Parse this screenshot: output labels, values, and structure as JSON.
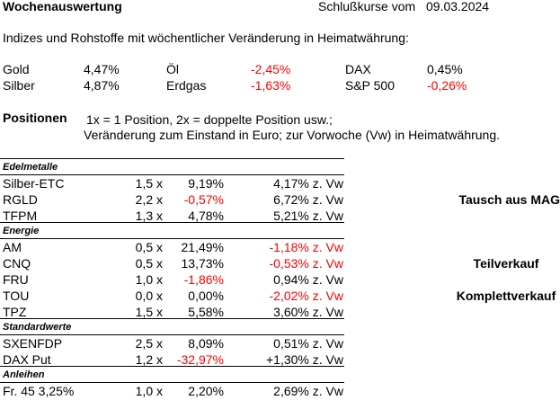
{
  "header": {
    "title": "Wochenauswertung",
    "date_label": "Schlußkurse vom",
    "date": "09.03.2024"
  },
  "intro": "Indizes und Rohstoffe mit wöchentlicher Veränderung in Heimatwährung:",
  "indices": [
    [
      {
        "name": "Gold",
        "value": "4,47%",
        "neg": false
      },
      {
        "name": "Öl",
        "value": "-2,45%",
        "neg": true
      },
      {
        "name": "DAX",
        "value": "0,45%",
        "neg": false
      }
    ],
    [
      {
        "name": "Silber",
        "value": "4,87%",
        "neg": false
      },
      {
        "name": "Erdgas",
        "value": "-1,63%",
        "neg": true
      },
      {
        "name": "S&P 500",
        "value": "-0,26%",
        "neg": true
      }
    ]
  ],
  "positions": {
    "title": "Positionen",
    "note1": "1x = 1 Position, 2x = doppelte Position usw.;",
    "note2": "Veränderung zum Einstand in Euro; zur Vorwoche (Vw) in Heimatwährung."
  },
  "colors": {
    "negative": "#ff0000"
  },
  "sections": [
    {
      "name": "Edelmetalle",
      "rows": [
        {
          "name": "Silber-ETC",
          "mult": "1,5 x",
          "pct": "9,19%",
          "pct_neg": false,
          "vw": "4,17% z. Vw",
          "vw_neg": false,
          "note": ""
        },
        {
          "name": "RGLD",
          "mult": "2,2 x",
          "pct": "-0,57%",
          "pct_neg": true,
          "vw": "6,72% z. Vw",
          "vw_neg": false,
          "note": "Tausch aus MAG"
        },
        {
          "name": "TFPM",
          "mult": "1,3 x",
          "pct": "4,78%",
          "pct_neg": false,
          "vw": "5,21% z. Vw",
          "vw_neg": false,
          "note": ""
        }
      ]
    },
    {
      "name": "Energie",
      "rows": [
        {
          "name": "AM",
          "mult": "0,5 x",
          "pct": "21,49%",
          "pct_neg": false,
          "vw": "-1,18% z. Vw",
          "vw_neg": true,
          "note": ""
        },
        {
          "name": "CNQ",
          "mult": "0,5 x",
          "pct": "13,73%",
          "pct_neg": false,
          "vw": "-0,53% z. Vw",
          "vw_neg": true,
          "note": "Teilverkauf"
        },
        {
          "name": "FRU",
          "mult": "1,0 x",
          "pct": "-1,86%",
          "pct_neg": true,
          "vw": "0,94% z. Vw",
          "vw_neg": false,
          "note": ""
        },
        {
          "name": "TOU",
          "mult": "0,0 x",
          "pct": "0,00%",
          "pct_neg": false,
          "vw": "-2,02% z. Vw",
          "vw_neg": true,
          "note": "Komplettverkauf"
        },
        {
          "name": "TPZ",
          "mult": "1,5 x",
          "pct": "5,58%",
          "pct_neg": false,
          "vw": "3,60% z. Vw",
          "vw_neg": false,
          "note": ""
        }
      ]
    },
    {
      "name": "Standardwerte",
      "rows": [
        {
          "name": "SXENFDP",
          "mult": "2,5 x",
          "pct": "8,09%",
          "pct_neg": false,
          "vw": "0,51% z. Vw",
          "vw_neg": false,
          "note": ""
        },
        {
          "name": "DAX Put",
          "mult": "1,2 x",
          "pct": "-32,97%",
          "pct_neg": true,
          "vw": "+1,30% z. Vw",
          "vw_neg": false,
          "note": ""
        }
      ]
    },
    {
      "name": "Anleihen",
      "rows": [
        {
          "name": "Fr. 45 3,25%",
          "mult": "1,0 x",
          "pct": "2,20%",
          "pct_neg": false,
          "vw": "2,69% z. Vw",
          "vw_neg": false,
          "note": ""
        }
      ]
    }
  ]
}
